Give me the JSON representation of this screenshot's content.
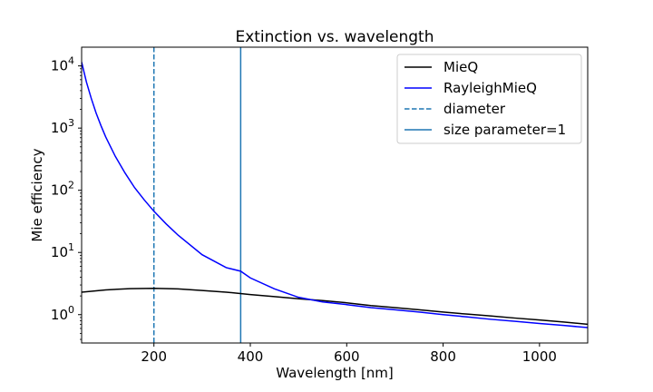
{
  "chart_data": {
    "type": "line",
    "title": "Extinction vs. wavelength",
    "xlabel": "Wavelength [nm]",
    "ylabel": "Mie efficiency",
    "xlim": [
      50,
      1100
    ],
    "ylim": [
      0.35,
      20000
    ],
    "yscale": "log",
    "grid": false,
    "legend_position": "top-right",
    "x_ticks": [
      200,
      400,
      600,
      800,
      1000
    ],
    "x_tick_labels": [
      "200",
      "400",
      "600",
      "800",
      "1000"
    ],
    "y_ticks": [
      1,
      10,
      100,
      1000,
      10000
    ],
    "y_tick_labels": [
      {
        "base": "10",
        "exp": "0"
      },
      {
        "base": "10",
        "exp": "1"
      },
      {
        "base": "10",
        "exp": "2"
      },
      {
        "base": "10",
        "exp": "3"
      },
      {
        "base": "10",
        "exp": "4"
      }
    ],
    "series": [
      {
        "name": "MieQ",
        "color": "#000000",
        "style": "solid",
        "x": [
          50,
          100,
          150,
          200,
          250,
          300,
          350,
          400,
          450,
          500,
          550,
          600,
          650,
          700,
          750,
          800,
          850,
          900,
          950,
          1000,
          1050,
          1100
        ],
        "y": [
          2.3,
          2.5,
          2.62,
          2.65,
          2.6,
          2.45,
          2.3,
          2.1,
          1.95,
          1.8,
          1.68,
          1.55,
          1.4,
          1.3,
          1.2,
          1.1,
          1.02,
          0.95,
          0.88,
          0.82,
          0.76,
          0.7
        ]
      },
      {
        "name": "RayleighMieQ",
        "color": "#0000ff",
        "style": "solid",
        "x": [
          50,
          60,
          70,
          80,
          90,
          100,
          120,
          140,
          160,
          180,
          200,
          225,
          250,
          300,
          350,
          380,
          400,
          450,
          500,
          550,
          600,
          650,
          700,
          750,
          800,
          850,
          900,
          950,
          1000,
          1050,
          1100
        ],
        "y": [
          11500,
          5500,
          3000,
          1750,
          1100,
          720,
          350,
          190,
          110,
          70,
          46,
          29,
          19,
          9.2,
          5.7,
          5.0,
          3.9,
          2.6,
          1.9,
          1.6,
          1.45,
          1.3,
          1.2,
          1.1,
          1.0,
          0.92,
          0.84,
          0.78,
          0.72,
          0.67,
          0.62
        ]
      }
    ],
    "vlines": [
      {
        "name": "diameter",
        "x": 200,
        "color": "#1f77b4",
        "style": "dashed"
      },
      {
        "name": "size parameter=1",
        "x": 380,
        "color": "#1f77b4",
        "style": "solid"
      }
    ]
  }
}
